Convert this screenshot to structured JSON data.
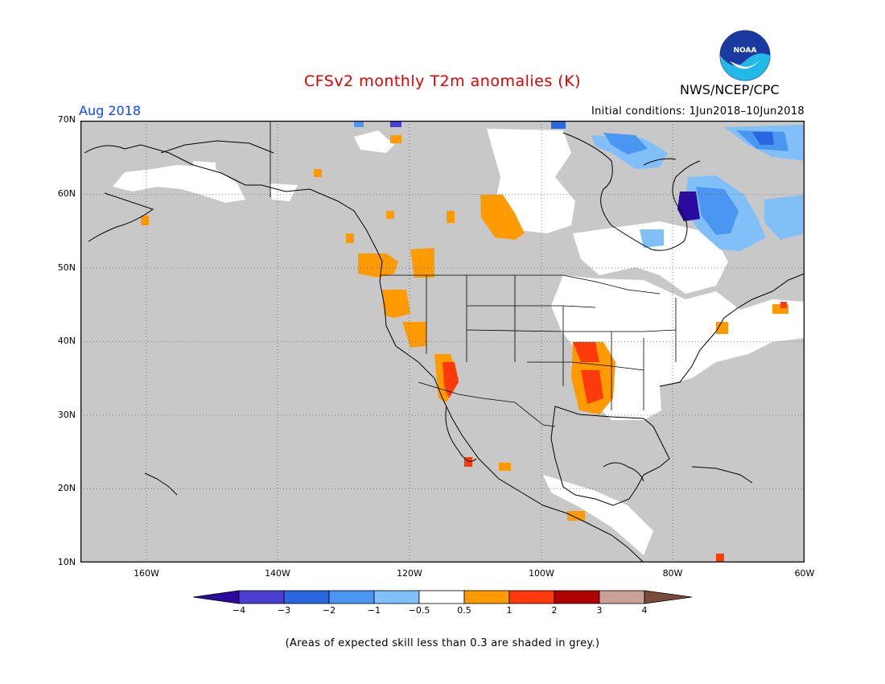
{
  "title": "CFSv2 monthly T2m anomalies (K)",
  "month_label": "Aug 2018",
  "initial_conditions": "Initial conditions: 1Jun2018–10Jun2018",
  "agency": "NWS/NCEP/CPC",
  "logo_text": "NOAA",
  "footnote": "(Areas of expected skill less than 0.3 are shaded in grey.)",
  "map": {
    "lat_labels": [
      "70N",
      "60N",
      "50N",
      "40N",
      "30N",
      "20N",
      "10N"
    ],
    "lon_labels": [
      "160W",
      "140W",
      "120W",
      "100W",
      "80W",
      "60W"
    ],
    "extent": {
      "lon": [
        -170,
        -60
      ],
      "lat": [
        10,
        70
      ]
    },
    "grid_lines": "dotted",
    "skill_mask_color": "#c8c8c8"
  },
  "colorbar": {
    "tick_labels": [
      "−4",
      "−3",
      "−2",
      "−1",
      "−0.5",
      "0.5",
      "1",
      "2",
      "3",
      "4"
    ],
    "colors": [
      "#2a0aa0",
      "#4a3fd0",
      "#2a66e0",
      "#4a96f0",
      "#80bff8",
      "#ffffff",
      "#ff9a00",
      "#ff3a0a",
      "#b00000",
      "#c8a095",
      "#7a4a3a"
    ]
  }
}
